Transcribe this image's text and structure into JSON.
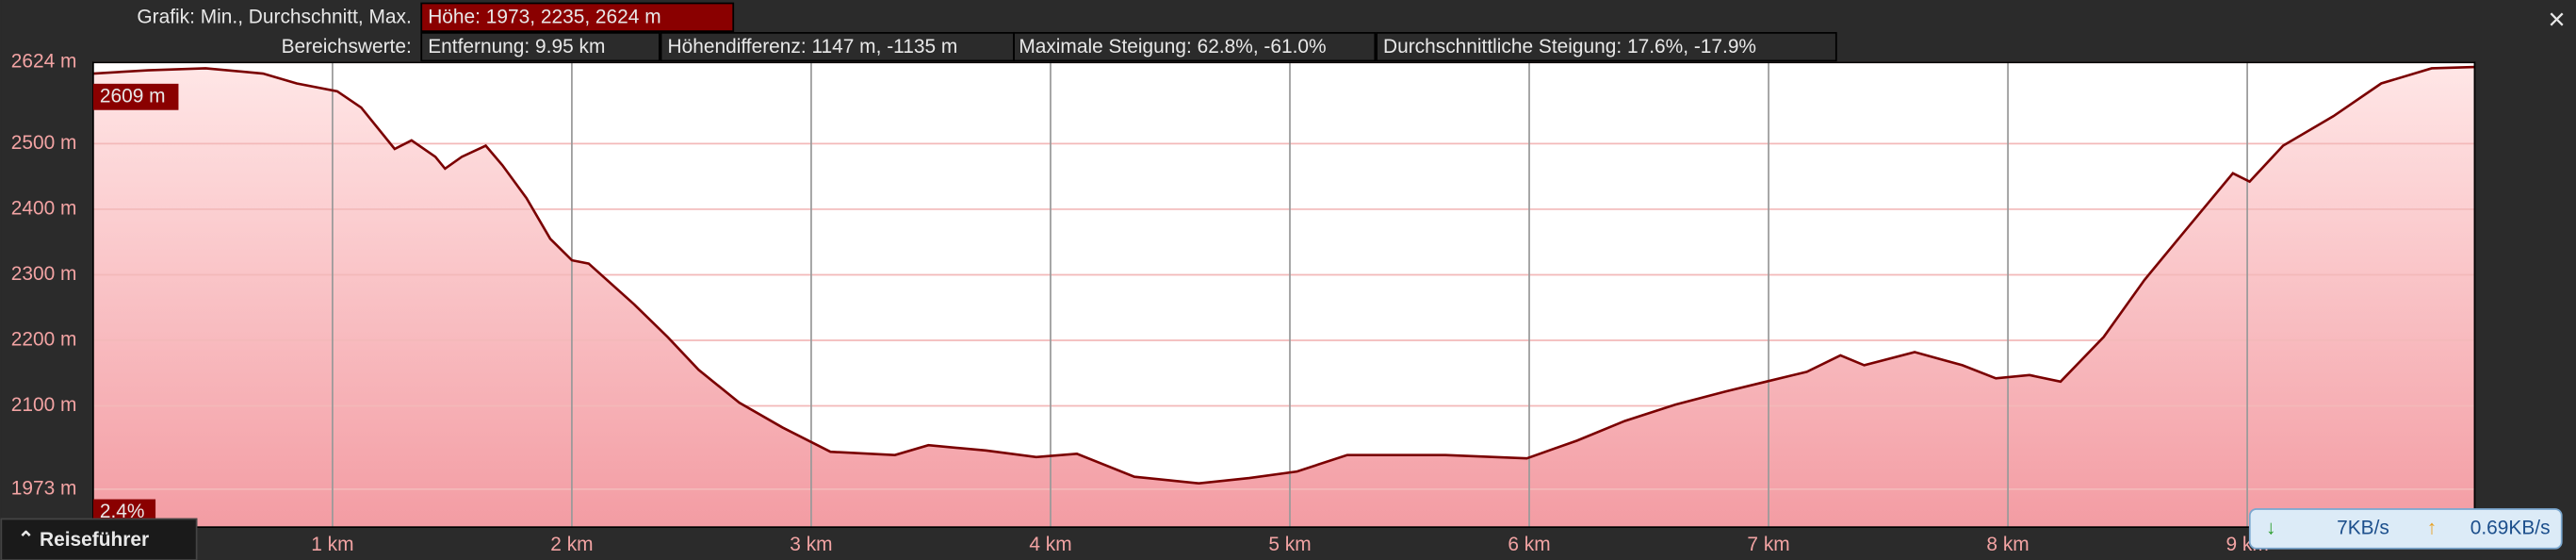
{
  "header": {
    "graph_label": "Grafik: Min., Durchschnitt, Max.",
    "hoehe": "Höhe: 1973, 2235, 2624 m",
    "range_label": "Bereichswerte:",
    "entfernung": "Entfernung: 9.95 km",
    "hoehendifferenz": "Höhendifferenz: 1147 m, -1135 m",
    "max_steigung": "Maximale Steigung: 62.8%, -61.0%",
    "avg_steigung": "Durchschnittliche Steigung: 17.6%, -17.9%",
    "close": "×"
  },
  "chart_data": {
    "type": "area",
    "color": "#7a0000",
    "x": [
      0,
      0.23,
      0.47,
      0.71,
      0.85,
      1.02,
      1.12,
      1.26,
      1.33,
      1.43,
      1.47,
      1.54,
      1.64,
      1.71,
      1.81,
      1.91,
      2.0,
      2.07,
      2.26,
      2.4,
      2.53,
      2.7,
      2.88,
      3.08,
      3.35,
      3.49,
      3.73,
      3.94,
      4.11,
      4.35,
      4.62,
      4.83,
      5.03,
      5.24,
      5.65,
      5.99,
      6.2,
      6.4,
      6.61,
      6.82,
      6.99,
      7.16,
      7.3,
      7.4,
      7.61,
      7.81,
      7.95,
      8.09,
      8.22,
      8.4,
      8.57,
      8.74,
      8.94,
      9.01,
      9.15,
      9.36,
      9.56,
      9.77,
      9.95
    ],
    "values": [
      2607,
      2612,
      2615,
      2607,
      2592,
      2580,
      2555,
      2492,
      2505,
      2480,
      2462,
      2480,
      2497,
      2467,
      2417,
      2355,
      2322,
      2317,
      2255,
      2205,
      2155,
      2105,
      2067,
      2030,
      2025,
      2040,
      2032,
      2022,
      2027,
      1992,
      1982,
      1990,
      2000,
      2025,
      2025,
      2020,
      2047,
      2077,
      2102,
      2122,
      2137,
      2152,
      2177,
      2162,
      2182,
      2162,
      2142,
      2147,
      2137,
      2205,
      2292,
      2367,
      2455,
      2442,
      2497,
      2542,
      2592,
      2615,
      2617
    ],
    "xlim": [
      0,
      9.95
    ],
    "ylim": [
      1915,
      2624
    ],
    "xticks": [
      {
        "value": 1,
        "label": "1 km"
      },
      {
        "value": 2,
        "label": "2 km"
      },
      {
        "value": 3,
        "label": "3 km"
      },
      {
        "value": 4,
        "label": "4 km"
      },
      {
        "value": 5,
        "label": "5 km"
      },
      {
        "value": 6,
        "label": "6 km"
      },
      {
        "value": 7,
        "label": "7 km"
      },
      {
        "value": 8,
        "label": "8 km"
      },
      {
        "value": 9,
        "label": "9 km"
      }
    ],
    "yticks": [
      {
        "value": 1973,
        "label": "1973 m"
      },
      {
        "value": 2100,
        "label": "2100 m"
      },
      {
        "value": 2200,
        "label": "2200 m"
      },
      {
        "value": 2300,
        "label": "2300 m"
      },
      {
        "value": 2400,
        "label": "2400 m"
      },
      {
        "value": 2500,
        "label": "2500 m"
      },
      {
        "value": 2624,
        "label": "2624 m"
      }
    ],
    "grid": true,
    "cursor_label": "2609 m",
    "slope_label": "2.4%"
  },
  "footer": {
    "guide_button": "Reiseführer",
    "download": "7KB/s",
    "upload": "0.69KB/s"
  }
}
